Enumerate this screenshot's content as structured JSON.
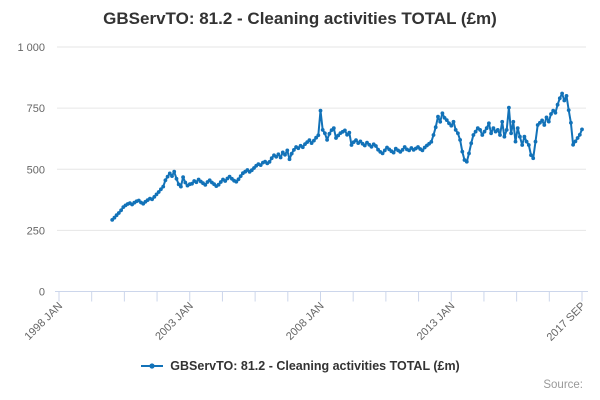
{
  "title": "GBServTO: 81.2 - Cleaning activities TOTAL (£m)",
  "legend": {
    "label": "GBServTO: 81.2 - Cleaning activities TOTAL (£m)"
  },
  "source_label": "Source:",
  "colors": {
    "series": "#1272b8",
    "axis_line": "#ccd6eb",
    "grid_line": "#e6e6e6",
    "axis_text": "#666666",
    "title_text": "#333333",
    "source_text": "#999999"
  },
  "chart_data": {
    "type": "line",
    "title": "GBServTO: 81.2 - Cleaning activities TOTAL (£m)",
    "xlabel": "",
    "ylabel": "",
    "legend_position": "bottom",
    "grid": true,
    "y_axis": {
      "range": [
        0,
        1000
      ],
      "ticks": [
        0,
        250,
        500,
        750,
        1000
      ],
      "tick_labels": [
        "0",
        "250",
        "500",
        "750",
        "1 000"
      ]
    },
    "x_axis": {
      "start_label": "1998 JAN",
      "end_label": "2017 SEP",
      "ticks_total": 17,
      "labeled_tick_indices": [
        0,
        4,
        8,
        12,
        16
      ],
      "tick_labels": [
        "1998 JAN",
        "2003 JAN",
        "2008 JAN",
        "2013 JAN",
        "2017 SEP"
      ],
      "total_months": 236
    },
    "series": [
      {
        "name": "GBServTO: 81.2 - Cleaning activities TOTAL (£m)",
        "frequency": "monthly",
        "start": "2000 JAN",
        "end": "2017 SEP",
        "start_month_offset": 24,
        "values": [
          293,
          302,
          312,
          321,
          332,
          345,
          352,
          358,
          361,
          356,
          363,
          369,
          372,
          364,
          359,
          367,
          374,
          380,
          377,
          387,
          397,
          407,
          418,
          429,
          455,
          470,
          483,
          472,
          490,
          461,
          438,
          429,
          468,
          446,
          433,
          439,
          441,
          452,
          447,
          458,
          450,
          443,
          436,
          448,
          455,
          446,
          439,
          431,
          437,
          448,
          458,
          452,
          462,
          470,
          461,
          453,
          449,
          459,
          472,
          484,
          490,
          497,
          489,
          496,
          505,
          514,
          521,
          517,
          527,
          531,
          524,
          530,
          545,
          557,
          551,
          561,
          548,
          569,
          559,
          577,
          541,
          564,
          579,
          591,
          586,
          596,
          590,
          603,
          611,
          619,
          607,
          617,
          629,
          639,
          740,
          661,
          647,
          620,
          645,
          660,
          668,
          628,
          638,
          648,
          653,
          659,
          641,
          650,
          599,
          611,
          619,
          607,
          614,
          604,
          597,
          609,
          600,
          592,
          602,
          595,
          580,
          571,
          565,
          577,
          589,
          581,
          574,
          568,
          584,
          577,
          571,
          579,
          591,
          581,
          577,
          587,
          579,
          585,
          591,
          583,
          577,
          589,
          597,
          604,
          612,
          640,
          672,
          715,
          694,
          729,
          710,
          701,
          688,
          678,
          694,
          661,
          647,
          620,
          572,
          538,
          531,
          565,
          606,
          640,
          654,
          668,
          661,
          640,
          654,
          668,
          688,
          647,
          668,
          654,
          661,
          640,
          694,
          633,
          661,
          752,
          647,
          694,
          613,
          668,
          633,
          599,
          633,
          613,
          599,
          558,
          545,
          613,
          681,
          690,
          700,
          681,
          712,
          695,
          726,
          740,
          731,
          764,
          790,
          810,
          781,
          800,
          742,
          690,
          600,
          614,
          628,
          641,
          663
        ]
      }
    ]
  }
}
